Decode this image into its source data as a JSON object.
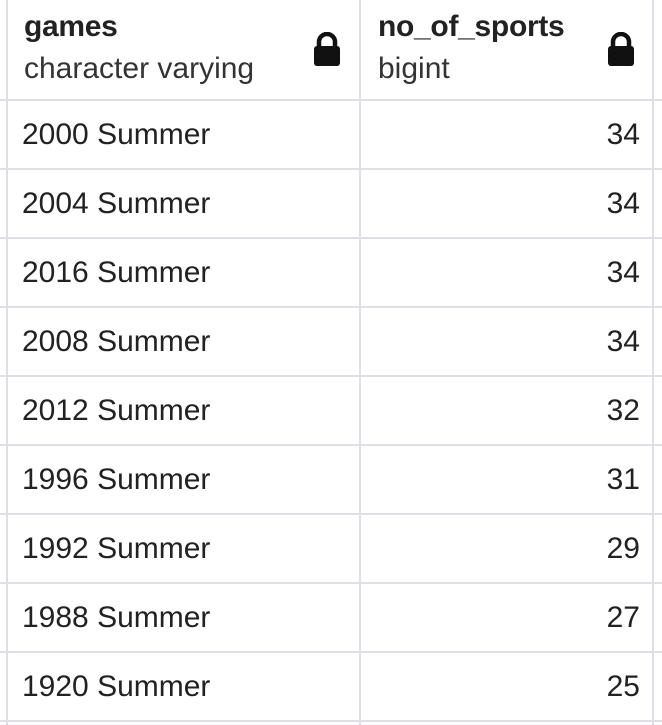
{
  "columns": [
    {
      "name": "games",
      "type": "character varying",
      "lock_icon": "lock-icon"
    },
    {
      "name": "no_of_sports",
      "type": "bigint",
      "lock_icon": "lock-icon"
    }
  ],
  "rows": [
    {
      "games": "2000 Summer",
      "no_of_sports": "34"
    },
    {
      "games": "2004 Summer",
      "no_of_sports": "34"
    },
    {
      "games": "2016 Summer",
      "no_of_sports": "34"
    },
    {
      "games": "2008 Summer",
      "no_of_sports": "34"
    },
    {
      "games": "2012 Summer",
      "no_of_sports": "32"
    },
    {
      "games": "1996 Summer",
      "no_of_sports": "31"
    },
    {
      "games": "1992 Summer",
      "no_of_sports": "29"
    },
    {
      "games": "1988 Summer",
      "no_of_sports": "27"
    },
    {
      "games": "1920 Summer",
      "no_of_sports": "25"
    }
  ],
  "colors": {
    "grid_line": "#dde0e6",
    "text": "#222222",
    "lock": "#111111"
  }
}
